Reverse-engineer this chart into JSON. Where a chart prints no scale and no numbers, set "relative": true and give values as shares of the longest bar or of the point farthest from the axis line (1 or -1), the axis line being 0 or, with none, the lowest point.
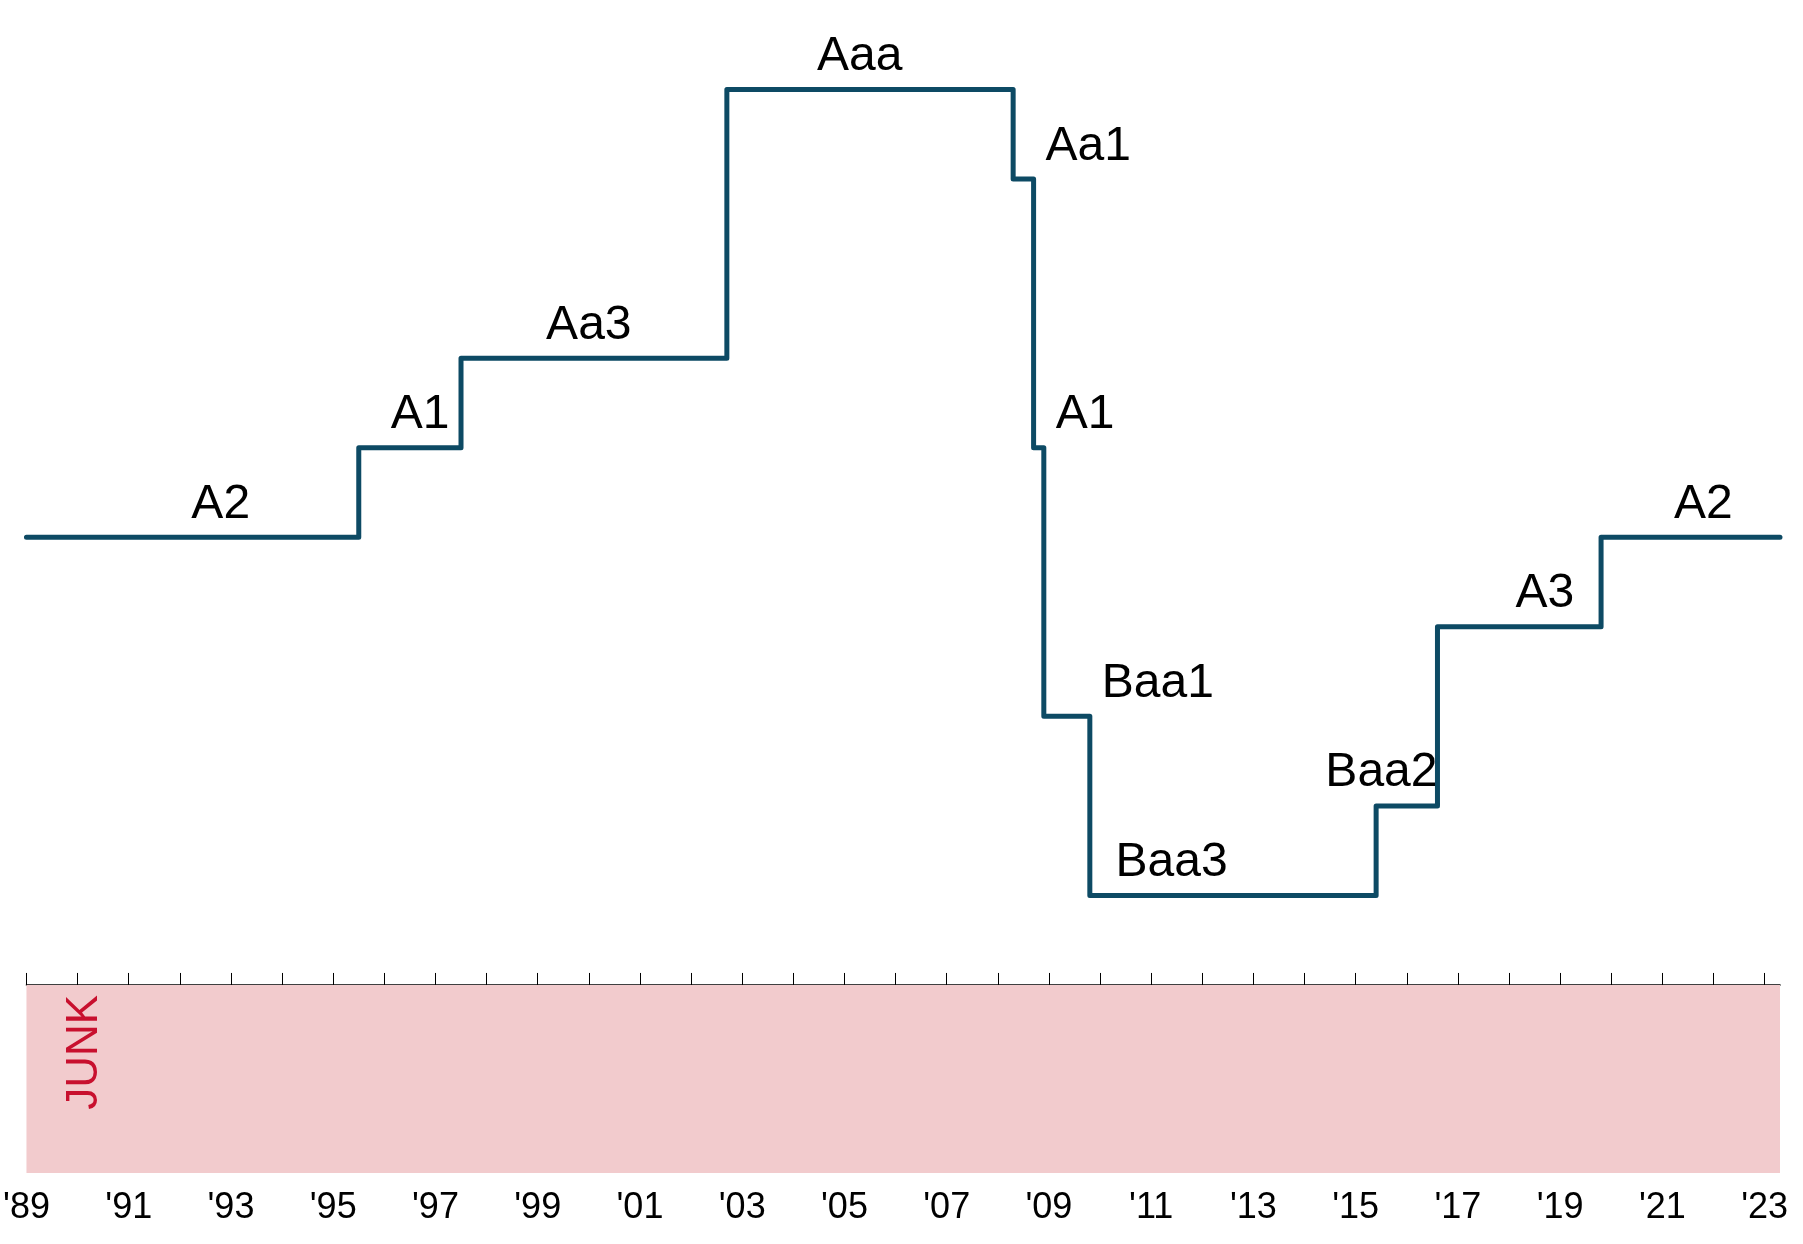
{
  "chart_data": {
    "type": "step",
    "relative": true,
    "x": [
      1989,
      1995.5,
      1997.5,
      2002.7,
      2008.3,
      2008.7,
      2008.8,
      2008.9,
      2009.8,
      2015.4,
      2016.6,
      2019.8,
      2023.3
    ],
    "series": [
      {
        "color": "#0d4a64",
        "values": [
          0.5,
          0.6,
          0.7,
          1.0,
          0.9,
          0.6,
          0.6,
          0.3,
          0.1,
          0.2,
          0.4,
          0.5,
          0.5
        ]
      }
    ],
    "xlim": [
      1989,
      2023.3
    ],
    "xticks": [
      {
        "value": 1989,
        "label": "'89"
      },
      {
        "value": 1990,
        "label": null
      },
      {
        "value": 1991,
        "label": "'91"
      },
      {
        "value": 1992,
        "label": null
      },
      {
        "value": 1993,
        "label": "'93"
      },
      {
        "value": 1994,
        "label": null
      },
      {
        "value": 1995,
        "label": "'95"
      },
      {
        "value": 1996,
        "label": null
      },
      {
        "value": 1997,
        "label": "'97"
      },
      {
        "value": 1998,
        "label": null
      },
      {
        "value": 1999,
        "label": "'99"
      },
      {
        "value": 2000,
        "label": null
      },
      {
        "value": 2001,
        "label": "'01"
      },
      {
        "value": 2002,
        "label": null
      },
      {
        "value": 2003,
        "label": "'03"
      },
      {
        "value": 2004,
        "label": null
      },
      {
        "value": 2005,
        "label": "'05"
      },
      {
        "value": 2006,
        "label": null
      },
      {
        "value": 2007,
        "label": "'07"
      },
      {
        "value": 2008,
        "label": null
      },
      {
        "value": 2009,
        "label": "'09"
      },
      {
        "value": 2010,
        "label": null
      },
      {
        "value": 2011,
        "label": "'11"
      },
      {
        "value": 2012,
        "label": null
      },
      {
        "value": 2013,
        "label": "'13"
      },
      {
        "value": 2014,
        "label": null
      },
      {
        "value": 2015,
        "label": "'15"
      },
      {
        "value": 2016,
        "label": null
      },
      {
        "value": 2017,
        "label": "'17"
      },
      {
        "value": 2018,
        "label": null
      },
      {
        "value": 2019,
        "label": "'19"
      },
      {
        "value": 2020,
        "label": null
      },
      {
        "value": 2021,
        "label": "'21"
      },
      {
        "value": 2022,
        "label": null
      },
      {
        "value": 2023,
        "label": "'23"
      }
    ],
    "tick_labels": "x",
    "grid": false,
    "marker": "none",
    "line_style": "solid",
    "bands": [
      {
        "axis": "y",
        "from": -0.21,
        "to": 0,
        "label": "JUNK",
        "color": "#f2cbcd"
      }
    ],
    "annotations": [
      {
        "text": "A2",
        "x": 1992.8,
        "y": 0.5
      },
      {
        "text": "A1",
        "x": 1996.7,
        "y": 0.6
      },
      {
        "text": "Aa3",
        "x": 2000.0,
        "y": 0.7
      },
      {
        "text": "Aaa",
        "x": 2005.3,
        "y": 1.0
      },
      {
        "text": "Aa1",
        "x": 2008.5,
        "y": 0.9
      },
      {
        "text": "A1",
        "x": 2008.85,
        "y": 0.6
      },
      {
        "text": "Baa1",
        "x": 2009.3,
        "y": 0.3
      },
      {
        "text": "Baa2",
        "x": 2016.0,
        "y": 0.2
      },
      {
        "text": "Baa3",
        "x": 2011.4,
        "y": 0.1
      },
      {
        "text": "A3",
        "x": 2018.7,
        "y": 0.4
      },
      {
        "text": "A2",
        "x": 2021.8,
        "y": 0.5
      }
    ]
  }
}
